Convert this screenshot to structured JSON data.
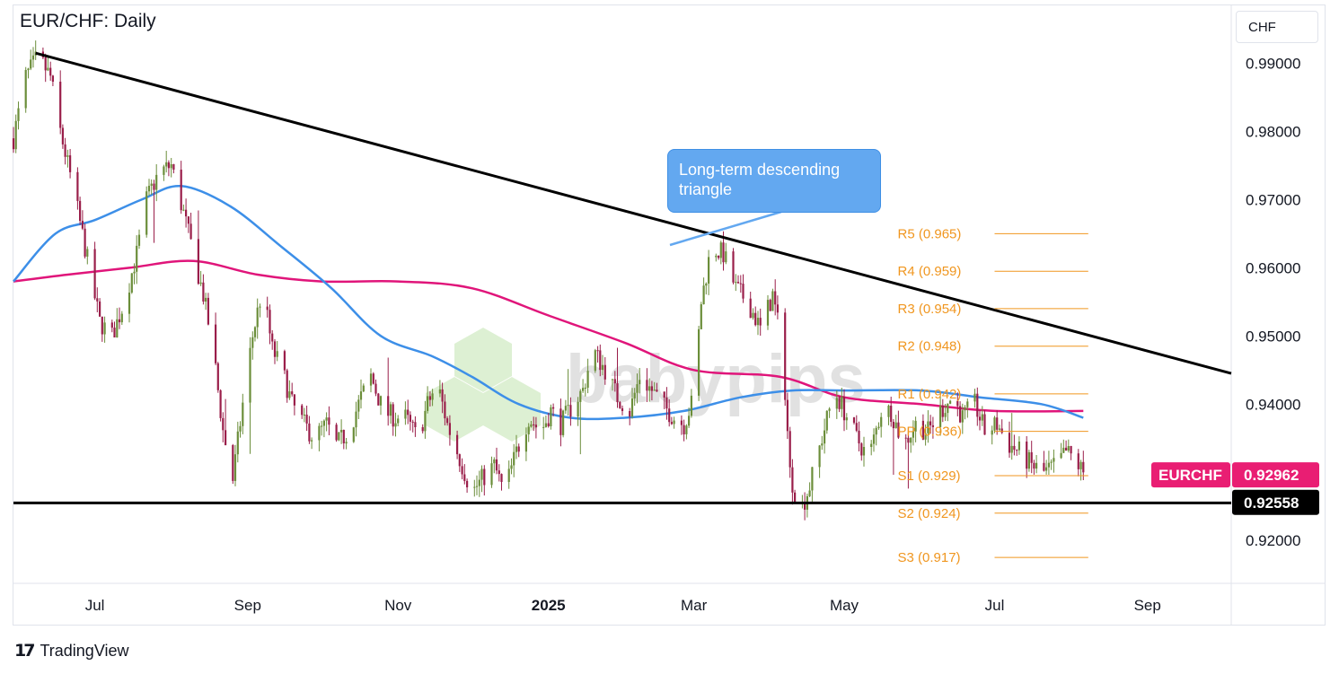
{
  "header": {
    "title": "EUR/CHF: Daily",
    "currency": "CHF"
  },
  "footer": {
    "brand": "TradingView",
    "logo_icon": "tradingview-logo-icon"
  },
  "annotation": {
    "text": "Long-term descending triangle"
  },
  "watermark": {
    "text": "babypips"
  },
  "colors": {
    "up_candle": "#6b8e3a",
    "down_candle": "#9a1e4a",
    "sma_blue": "#3d8fe8",
    "sma_pink": "#e0157a",
    "pivot": "#f0961f",
    "trendline": "#000000",
    "price_badge": "#e91e73",
    "support_badge": "#000000"
  },
  "chart_data": {
    "type": "candlestick",
    "title": "EUR/CHF: Daily",
    "y_axis_label": "CHF",
    "y_range": [
      0.9137,
      0.9985
    ],
    "y_ticks": [
      "0.99000",
      "0.98000",
      "0.97000",
      "0.96000",
      "0.95000",
      "0.94000",
      "0.92000"
    ],
    "x_ticks": [
      {
        "label": "Jul",
        "date": "2024-07-01",
        "bold": false
      },
      {
        "label": "Sep",
        "date": "2024-09-01",
        "bold": false
      },
      {
        "label": "Nov",
        "date": "2024-11-01",
        "bold": false
      },
      {
        "label": "2025",
        "date": "2025-01-01",
        "bold": true
      },
      {
        "label": "Mar",
        "date": "2025-03-01",
        "bold": false
      },
      {
        "label": "May",
        "date": "2025-05-01",
        "bold": false
      },
      {
        "label": "Jul",
        "date": "2025-07-01",
        "bold": false
      },
      {
        "label": "Sep",
        "date": "2025-09-01",
        "bold": false
      }
    ],
    "x_range": [
      "2024-05-29",
      "2025-10-05"
    ],
    "price_path": [
      [
        "2024-05-29",
        0.979
      ],
      [
        "2024-06-03",
        0.988
      ],
      [
        "2024-06-08",
        0.991
      ],
      [
        "2024-06-13",
        0.988
      ],
      [
        "2024-06-17",
        0.98
      ],
      [
        "2024-06-22",
        0.972
      ],
      [
        "2024-06-27",
        0.963
      ],
      [
        "2024-07-03",
        0.952
      ],
      [
        "2024-07-08",
        0.95
      ],
      [
        "2024-07-13",
        0.955
      ],
      [
        "2024-07-18",
        0.962
      ],
      [
        "2024-07-22",
        0.97
      ],
      [
        "2024-07-27",
        0.974
      ],
      [
        "2024-08-01",
        0.975
      ],
      [
        "2024-08-06",
        0.968
      ],
      [
        "2024-08-10",
        0.962
      ],
      [
        "2024-08-14",
        0.956
      ],
      [
        "2024-08-18",
        0.948
      ],
      [
        "2024-08-22",
        0.936
      ],
      [
        "2024-08-26",
        0.929
      ],
      [
        "2024-08-30",
        0.94
      ],
      [
        "2024-09-03",
        0.95
      ],
      [
        "2024-09-07",
        0.957
      ],
      [
        "2024-09-11",
        0.948
      ],
      [
        "2024-09-15",
        0.945
      ],
      [
        "2024-09-19",
        0.94
      ],
      [
        "2024-09-24",
        0.937
      ],
      [
        "2024-09-28",
        0.935
      ],
      [
        "2024-10-03",
        0.937
      ],
      [
        "2024-10-07",
        0.934
      ],
      [
        "2024-10-12",
        0.936
      ],
      [
        "2024-10-17",
        0.941
      ],
      [
        "2024-10-21",
        0.944
      ],
      [
        "2024-10-26",
        0.939
      ],
      [
        "2024-10-31",
        0.938
      ],
      [
        "2024-11-04",
        0.938
      ],
      [
        "2024-11-09",
        0.935
      ],
      [
        "2024-11-13",
        0.94
      ],
      [
        "2024-11-17",
        0.943
      ],
      [
        "2024-11-21",
        0.937
      ],
      [
        "2024-11-26",
        0.932
      ],
      [
        "2024-12-01",
        0.927
      ],
      [
        "2024-12-05",
        0.929
      ],
      [
        "2024-12-10",
        0.931
      ],
      [
        "2024-12-14",
        0.927
      ],
      [
        "2024-12-19",
        0.933
      ],
      [
        "2024-12-24",
        0.938
      ],
      [
        "2024-12-29",
        0.936
      ],
      [
        "2025-01-02",
        0.939
      ],
      [
        "2025-01-06",
        0.937
      ],
      [
        "2025-01-11",
        0.94
      ],
      [
        "2025-01-15",
        0.942
      ],
      [
        "2025-01-19",
        0.948
      ],
      [
        "2025-01-24",
        0.945
      ],
      [
        "2025-01-29",
        0.941
      ],
      [
        "2025-02-03",
        0.939
      ],
      [
        "2025-02-07",
        0.944
      ],
      [
        "2025-02-12",
        0.942
      ],
      [
        "2025-02-16",
        0.94
      ],
      [
        "2025-02-21",
        0.938
      ],
      [
        "2025-02-25",
        0.937
      ],
      [
        "2025-03-01",
        0.941
      ],
      [
        "2025-03-04",
        0.955
      ],
      [
        "2025-03-08",
        0.963
      ],
      [
        "2025-03-13",
        0.962
      ],
      [
        "2025-03-18",
        0.957
      ],
      [
        "2025-03-23",
        0.955
      ],
      [
        "2025-03-28",
        0.951
      ],
      [
        "2025-04-02",
        0.956
      ],
      [
        "2025-04-06",
        0.948
      ],
      [
        "2025-04-09",
        0.93
      ],
      [
        "2025-04-13",
        0.924
      ],
      [
        "2025-04-17",
        0.928
      ],
      [
        "2025-04-22",
        0.935
      ],
      [
        "2025-04-27",
        0.942
      ],
      [
        "2025-05-01",
        0.939
      ],
      [
        "2025-05-06",
        0.935
      ],
      [
        "2025-05-11",
        0.932
      ],
      [
        "2025-05-16",
        0.939
      ],
      [
        "2025-05-20",
        0.939
      ],
      [
        "2025-05-25",
        0.934
      ],
      [
        "2025-05-30",
        0.937
      ],
      [
        "2025-06-04",
        0.936
      ],
      [
        "2025-06-09",
        0.939
      ],
      [
        "2025-06-14",
        0.941
      ],
      [
        "2025-06-18",
        0.938
      ],
      [
        "2025-06-23",
        0.94
      ],
      [
        "2025-06-27",
        0.936
      ],
      [
        "2025-07-02",
        0.937
      ],
      [
        "2025-07-07",
        0.934
      ],
      [
        "2025-07-11",
        0.933
      ],
      [
        "2025-07-16",
        0.931
      ],
      [
        "2025-07-21",
        0.93
      ],
      [
        "2025-07-26",
        0.931
      ],
      [
        "2025-07-30",
        0.933
      ],
      [
        "2025-08-02",
        0.932
      ],
      [
        "2025-08-06",
        0.93
      ]
    ],
    "sma_blue": [
      [
        "2024-05-29",
        0.958
      ],
      [
        "2024-06-15",
        0.965
      ],
      [
        "2024-07-01",
        0.967
      ],
      [
        "2024-07-20",
        0.97
      ],
      [
        "2024-08-05",
        0.972
      ],
      [
        "2024-08-25",
        0.969
      ],
      [
        "2024-09-15",
        0.963
      ],
      [
        "2024-10-05",
        0.957
      ],
      [
        "2024-10-25",
        0.95
      ],
      [
        "2024-11-15",
        0.947
      ],
      [
        "2024-12-01",
        0.944
      ],
      [
        "2024-12-20",
        0.94
      ],
      [
        "2025-01-10",
        0.938
      ],
      [
        "2025-02-01",
        0.938
      ],
      [
        "2025-02-25",
        0.939
      ],
      [
        "2025-03-20",
        0.941
      ],
      [
        "2025-04-10",
        0.942
      ],
      [
        "2025-05-01",
        0.942
      ],
      [
        "2025-06-01",
        0.942
      ],
      [
        "2025-06-25",
        0.941
      ],
      [
        "2025-07-20",
        0.94
      ],
      [
        "2025-08-06",
        0.938
      ]
    ],
    "sma_pink": [
      [
        "2024-05-29",
        0.958
      ],
      [
        "2024-06-20",
        0.959
      ],
      [
        "2024-07-15",
        0.96
      ],
      [
        "2024-08-10",
        0.961
      ],
      [
        "2024-09-05",
        0.959
      ],
      [
        "2024-10-01",
        0.958
      ],
      [
        "2024-11-01",
        0.958
      ],
      [
        "2024-12-01",
        0.957
      ],
      [
        "2025-01-01",
        0.953
      ],
      [
        "2025-02-01",
        0.949
      ],
      [
        "2025-03-01",
        0.945
      ],
      [
        "2025-04-05",
        0.944
      ],
      [
        "2025-05-01",
        0.941
      ],
      [
        "2025-06-01",
        0.94
      ],
      [
        "2025-07-01",
        0.939
      ],
      [
        "2025-08-06",
        0.939
      ]
    ],
    "trendlines": [
      {
        "name": "descending-resistance",
        "from": [
          "2024-06-07",
          0.9915
        ],
        "to": [
          "2025-10-05",
          0.9445
        ]
      },
      {
        "name": "horizontal-support",
        "from": [
          "2024-05-29",
          0.9255
        ],
        "to": [
          "2025-10-05",
          0.9255
        ]
      }
    ],
    "pivot_levels": [
      {
        "label": "R5 (0.965)",
        "value": 0.965
      },
      {
        "label": "R4 (0.959)",
        "value": 0.9595
      },
      {
        "label": "R3 (0.954)",
        "value": 0.954
      },
      {
        "label": "R2 (0.948)",
        "value": 0.9485
      },
      {
        "label": "R1 (0.942)",
        "value": 0.9415
      },
      {
        "label": "PP (0.936)",
        "value": 0.936
      },
      {
        "label": "S1 (0.929)",
        "value": 0.9295
      },
      {
        "label": "S2 (0.924)",
        "value": 0.924
      },
      {
        "label": "S3 (0.917)",
        "value": 0.9175
      }
    ],
    "pivot_range": [
      "2025-07-01",
      "2025-08-08"
    ],
    "price_badges": [
      {
        "label": "EURCHF",
        "value_text": "0.92962",
        "value": 0.92962,
        "style": "pink"
      },
      {
        "label": "",
        "value_text": "0.92558",
        "value": 0.92558,
        "style": "black"
      }
    ]
  }
}
